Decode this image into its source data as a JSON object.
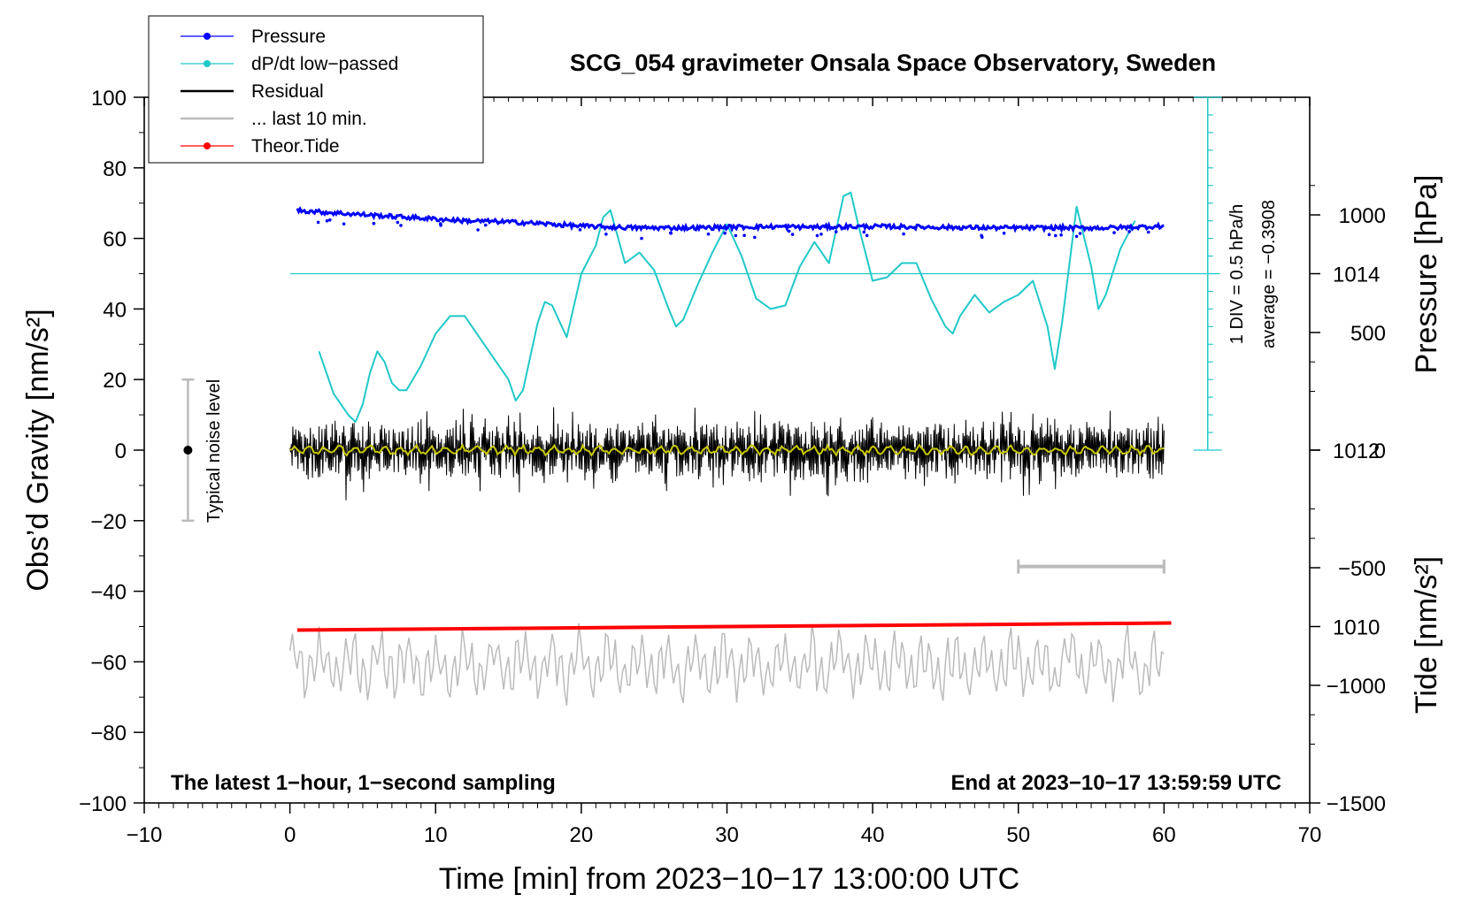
{
  "chart_data": {
    "type": "line",
    "title": "SCG_054 gravimeter Onsala Space Observatory, Sweden",
    "xlabel": "Time [min] from 2023−10−17 13:00:00 UTC",
    "ylabel_left": "Obs’d Gravity [nm/s²]",
    "ylabel_right_top": "Pressure [hPa]",
    "ylabel_right_bottom": "Tide [nm/s²]",
    "xlim": [
      -10,
      70
    ],
    "ylim": [
      -100,
      100
    ],
    "xticks": [
      -10,
      0,
      10,
      20,
      30,
      40,
      50,
      60,
      70
    ],
    "xtick_labels": [
      "−10",
      "0",
      "10",
      "20",
      "30",
      "40",
      "50",
      "60",
      "70"
    ],
    "yticks": [
      -100,
      -80,
      -60,
      -40,
      -20,
      0,
      20,
      40,
      60,
      80,
      100
    ],
    "ytick_labels": [
      "−100",
      "−80",
      "−60",
      "−40",
      "−20",
      "0",
      "20",
      "40",
      "60",
      "80",
      "100"
    ],
    "pressure_axis": {
      "ticks": [
        1010,
        1012,
        1014
      ],
      "tick_labels": [
        "1010",
        "1012",
        "1014"
      ],
      "range": [
        1008.0,
        1016.0
      ]
    },
    "tide_axis": {
      "ticks": [
        -1500,
        -1000,
        -500,
        0,
        500,
        1000
      ],
      "tick_labels": [
        "−1500",
        "−1000",
        "−500",
        "0",
        "500",
        "1000"
      ],
      "range": [
        -1500,
        1500
      ]
    },
    "legend": {
      "position": "top-left",
      "entries": [
        {
          "label": "Pressure",
          "color": "#0000ff",
          "marker": "dot"
        },
        {
          "label": "dP/dt low−passed",
          "color": "#20c8c8",
          "marker": "dot"
        },
        {
          "label": "Residual",
          "color": "#000000",
          "marker": "line"
        },
        {
          "label": "... last 10 min.",
          "color": "#bbbbbb",
          "marker": "line"
        },
        {
          "label": "Theor.Tide",
          "color": "#ff0000",
          "marker": "dot"
        }
      ]
    },
    "notes": {
      "bottom_left": "The latest 1−hour, 1−second sampling",
      "bottom_right": "End at 2023−10−17 13:59:59 UTC",
      "noise_label": "Typical noise level",
      "div_label": "1 DIV = 0.5 hPa/h",
      "average_label": "average = −0.3908"
    },
    "noise_bar": {
      "x": -7,
      "center": 0,
      "low": -20,
      "high": 20
    },
    "last10_bar": {
      "x_start": 50,
      "x_end": 60,
      "y": -33
    },
    "dpdt_reference": {
      "y": 50,
      "x_start": 0,
      "x_end": 63
    },
    "dpdt_scale_bar": {
      "x": 63,
      "y_bottom": 0,
      "y_top": 100,
      "divisions": 20
    },
    "series": [
      {
        "name": "Pressure",
        "color": "#0000ff",
        "x": [
          0.5,
          2,
          4,
          6,
          8,
          10,
          12,
          14,
          16,
          18,
          20,
          22,
          24,
          26,
          28,
          30,
          32,
          34,
          36,
          38,
          40,
          42,
          44,
          46,
          48,
          50,
          52,
          54,
          56,
          58,
          60
        ],
        "y": [
          68,
          67.5,
          67,
          66.5,
          66,
          65.5,
          65,
          64.8,
          64.5,
          64,
          63.5,
          63.2,
          63,
          63,
          63,
          63.2,
          63.3,
          63.3,
          63.2,
          63.3,
          63.4,
          63.3,
          63.2,
          63.1,
          63,
          63,
          63,
          63,
          63,
          63.2,
          63.5
        ]
      },
      {
        "name": "dP/dt low−passed",
        "color": "#20c8c8",
        "x": [
          2,
          3,
          4,
          4.5,
          5,
          5.5,
          6,
          6.5,
          7,
          7.5,
          8,
          9,
          10,
          11,
          12,
          13,
          14,
          15,
          15.5,
          16,
          17,
          17.5,
          18,
          19,
          20,
          21,
          21.5,
          22,
          23,
          24,
          25,
          26,
          26.5,
          27,
          28,
          29,
          30,
          31,
          32,
          33,
          34,
          35,
          36,
          37,
          38,
          38.5,
          39,
          40,
          41,
          42,
          43,
          44,
          45,
          45.5,
          46,
          47,
          48,
          49,
          50,
          51,
          52,
          52.5,
          53,
          54,
          55,
          55.5,
          56,
          57,
          58
        ],
        "y": [
          28,
          16,
          10,
          8,
          13,
          22,
          28,
          25,
          19,
          17,
          17,
          24,
          33,
          38,
          38,
          32,
          26,
          20,
          14,
          17,
          36,
          42,
          41,
          32,
          50,
          58,
          66,
          68,
          53,
          56,
          51,
          40,
          35,
          37,
          47,
          56,
          64,
          55,
          43,
          40,
          41,
          52,
          59,
          53,
          72,
          73,
          64,
          48,
          49,
          53,
          53,
          43,
          35,
          33,
          38,
          44,
          39,
          42,
          44,
          48,
          35,
          23,
          36,
          69,
          52,
          40,
          44,
          57,
          65
        ]
      },
      {
        "name": "Residual",
        "color": "#000000",
        "x": [
          0,
          60
        ],
        "y": [
          0,
          0
        ]
      },
      {
        "name": "... last 10 min.",
        "color": "#bbbbbb",
        "x": [
          0,
          60
        ],
        "y": [
          -61,
          -61
        ]
      },
      {
        "name": "Theor.Tide",
        "color": "#ff0000",
        "x": [
          0.5,
          60.5
        ],
        "y": [
          -51,
          -49
        ]
      }
    ]
  }
}
